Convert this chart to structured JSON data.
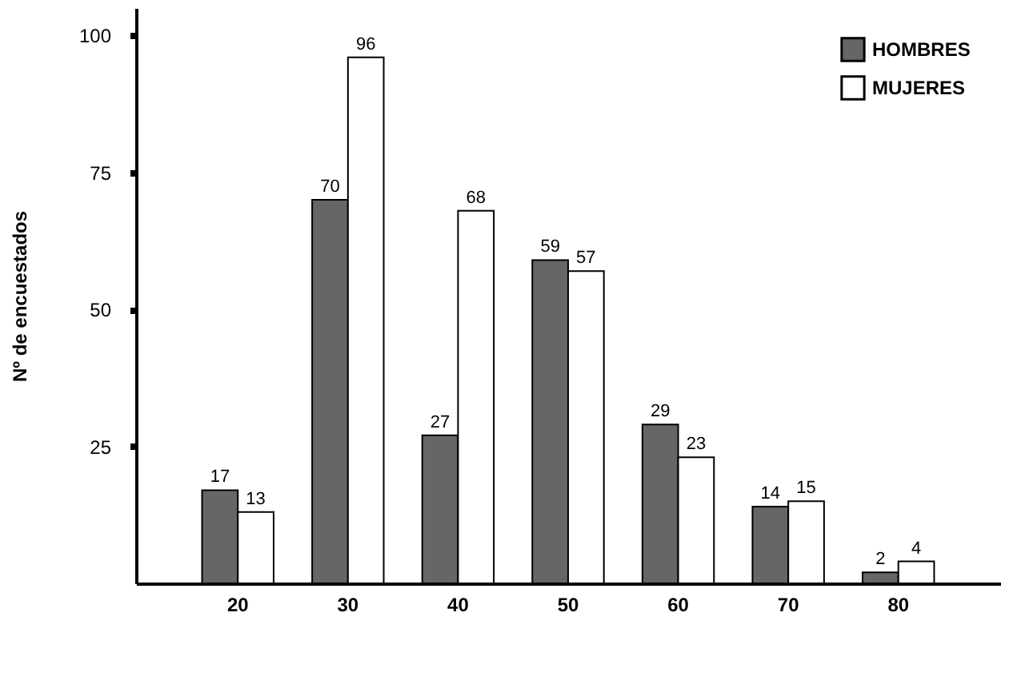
{
  "chart_data": {
    "type": "bar",
    "ylabel": "Nº de encuestados",
    "categories": [
      "20",
      "30",
      "40",
      "50",
      "60",
      "70",
      "80"
    ],
    "series": [
      {
        "name": "HOMBRES",
        "color": "#666666",
        "values": [
          17,
          70,
          27,
          59,
          29,
          14,
          2
        ]
      },
      {
        "name": "MUJERES",
        "color": "#ffffff",
        "values": [
          13,
          96,
          68,
          57,
          23,
          15,
          4
        ]
      }
    ],
    "ylim": [
      0,
      105
    ],
    "yticks": [
      25,
      50,
      75,
      100
    ],
    "data_labels": true,
    "legend": "top right",
    "grid": false
  }
}
